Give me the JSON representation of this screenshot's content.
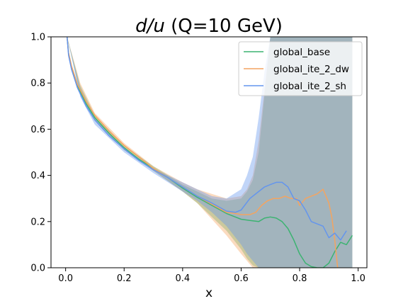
{
  "chart_data": {
    "type": "line",
    "title_italic": "d/u",
    "title_rest": " (Q=10 GeV)",
    "xlabel": "x",
    "ylabel": "",
    "xlim": [
      -0.05,
      1.03
    ],
    "ylim": [
      0.0,
      1.0
    ],
    "xticks": [
      "0.0",
      "0.2",
      "0.4",
      "0.6",
      "0.8",
      "1.0"
    ],
    "yticks": [
      "0.0",
      "0.2",
      "0.4",
      "0.6",
      "0.8",
      "1.0"
    ],
    "grid": false,
    "legend_position": "top-right",
    "series": [
      {
        "name": "global_base",
        "color": "#3cb371",
        "x": [
          0.005,
          0.01,
          0.02,
          0.04,
          0.07,
          0.1,
          0.15,
          0.2,
          0.25,
          0.3,
          0.35,
          0.4,
          0.45,
          0.5,
          0.55,
          0.58,
          0.6,
          0.63,
          0.66,
          0.68,
          0.7,
          0.72,
          0.74,
          0.76,
          0.78,
          0.8,
          0.82,
          0.84,
          0.86,
          0.88,
          0.9,
          0.92,
          0.94,
          0.96,
          0.98
        ],
        "values": [
          1.0,
          0.93,
          0.87,
          0.79,
          0.71,
          0.65,
          0.58,
          0.52,
          0.47,
          0.43,
          0.39,
          0.345,
          0.305,
          0.27,
          0.235,
          0.22,
          0.21,
          0.205,
          0.2,
          0.215,
          0.22,
          0.215,
          0.2,
          0.17,
          0.12,
          0.06,
          0.02,
          0.005,
          0.0,
          0.0,
          0.02,
          0.07,
          0.11,
          0.1,
          0.14
        ]
      },
      {
        "name": "global_ite_2_dw",
        "color": "#f4a460",
        "x": [
          0.005,
          0.01,
          0.02,
          0.04,
          0.07,
          0.1,
          0.15,
          0.2,
          0.25,
          0.3,
          0.35,
          0.4,
          0.45,
          0.5,
          0.55,
          0.58,
          0.6,
          0.63,
          0.65,
          0.67,
          0.69,
          0.71,
          0.73,
          0.75,
          0.77,
          0.79,
          0.8,
          0.82,
          0.84,
          0.86,
          0.88,
          0.9,
          0.91,
          0.92,
          0.93
        ],
        "values": [
          1.0,
          0.93,
          0.875,
          0.795,
          0.72,
          0.66,
          0.59,
          0.53,
          0.48,
          0.43,
          0.39,
          0.35,
          0.31,
          0.275,
          0.24,
          0.235,
          0.23,
          0.23,
          0.24,
          0.27,
          0.29,
          0.3,
          0.3,
          0.31,
          0.3,
          0.3,
          0.27,
          0.3,
          0.31,
          0.32,
          0.34,
          0.28,
          0.22,
          0.12,
          0.0
        ]
      },
      {
        "name": "global_ite_2_sh",
        "color": "#6495ed",
        "x": [
          0.005,
          0.01,
          0.02,
          0.04,
          0.07,
          0.1,
          0.15,
          0.2,
          0.25,
          0.3,
          0.35,
          0.4,
          0.45,
          0.5,
          0.55,
          0.58,
          0.6,
          0.63,
          0.66,
          0.68,
          0.7,
          0.72,
          0.74,
          0.76,
          0.78,
          0.8,
          0.82,
          0.84,
          0.86,
          0.88,
          0.9,
          0.92,
          0.94,
          0.96
        ],
        "values": [
          1.0,
          0.92,
          0.86,
          0.78,
          0.7,
          0.64,
          0.57,
          0.515,
          0.465,
          0.425,
          0.39,
          0.35,
          0.31,
          0.28,
          0.245,
          0.24,
          0.25,
          0.3,
          0.33,
          0.35,
          0.36,
          0.37,
          0.37,
          0.35,
          0.3,
          0.29,
          0.25,
          0.2,
          0.19,
          0.18,
          0.13,
          0.15,
          0.12,
          0.16
        ]
      }
    ],
    "bands": [
      {
        "series": "global_base",
        "color": "#3cb371",
        "opacity": 0.4,
        "x": [
          0.005,
          0.05,
          0.1,
          0.2,
          0.3,
          0.4,
          0.45,
          0.5,
          0.55,
          0.6,
          0.62,
          0.64,
          0.66,
          0.7,
          0.75,
          0.8,
          0.85,
          0.9,
          0.95,
          0.98
        ],
        "upper": [
          1.0,
          0.79,
          0.66,
          0.53,
          0.44,
          0.36,
          0.33,
          0.3,
          0.29,
          0.3,
          0.33,
          0.38,
          0.5,
          1.0,
          1.0,
          1.0,
          1.0,
          1.0,
          1.0,
          1.0
        ],
        "lower": [
          1.0,
          0.75,
          0.64,
          0.51,
          0.42,
          0.33,
          0.28,
          0.22,
          0.16,
          0.08,
          0.04,
          0.01,
          0.0,
          0.0,
          0.0,
          0.0,
          0.0,
          0.0,
          0.0,
          0.0
        ]
      },
      {
        "series": "global_ite_2_dw",
        "color": "#f4a460",
        "opacity": 0.4,
        "x": [
          0.005,
          0.05,
          0.1,
          0.2,
          0.3,
          0.4,
          0.45,
          0.5,
          0.55,
          0.6,
          0.62,
          0.64,
          0.66,
          0.7,
          0.75,
          0.8,
          0.85,
          0.9,
          0.95,
          0.98
        ],
        "upper": [
          1.0,
          0.8,
          0.67,
          0.54,
          0.44,
          0.37,
          0.34,
          0.32,
          0.3,
          0.31,
          0.34,
          0.4,
          0.55,
          1.0,
          1.0,
          1.0,
          1.0,
          1.0,
          1.0,
          1.0
        ],
        "lower": [
          1.0,
          0.76,
          0.64,
          0.51,
          0.42,
          0.33,
          0.28,
          0.21,
          0.14,
          0.06,
          0.03,
          0.0,
          0.0,
          0.0,
          0.0,
          0.0,
          0.0,
          0.0,
          0.0,
          0.0
        ]
      },
      {
        "series": "global_ite_2_sh",
        "color": "#6495ed",
        "opacity": 0.4,
        "x": [
          0.005,
          0.05,
          0.1,
          0.2,
          0.3,
          0.4,
          0.45,
          0.5,
          0.55,
          0.6,
          0.62,
          0.64,
          0.66,
          0.68,
          0.7,
          0.75,
          0.8,
          0.85,
          0.9,
          0.95,
          0.98
        ],
        "upper": [
          1.0,
          0.78,
          0.65,
          0.52,
          0.43,
          0.37,
          0.34,
          0.31,
          0.3,
          0.34,
          0.4,
          0.48,
          0.65,
          0.85,
          1.0,
          1.0,
          1.0,
          1.0,
          1.0,
          1.0,
          1.0
        ],
        "lower": [
          1.0,
          0.74,
          0.62,
          0.5,
          0.41,
          0.33,
          0.29,
          0.24,
          0.18,
          0.1,
          0.06,
          0.03,
          0.0,
          0.0,
          0.0,
          0.0,
          0.0,
          0.0,
          0.0,
          0.0,
          0.0
        ]
      }
    ]
  }
}
